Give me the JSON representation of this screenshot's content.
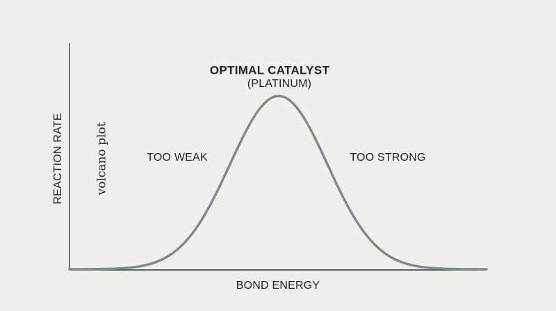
{
  "diagram": {
    "y_axis_label": "REACTION RATE",
    "x_axis_label": "BOND ENERGY",
    "peak_label": "OPTIMAL CATALYST",
    "peak_sublabel": "(PLATINUM)",
    "left_region_label": "TOO WEAK",
    "right_region_label": "TOO STRONG",
    "side_caption": "volcano plot"
  },
  "chart_data": {
    "type": "line",
    "curve_shape": "bell",
    "ticks_shown": false,
    "grid": false,
    "legend": "none",
    "colors": {
      "background": "#f1efeb",
      "axis": "#333333",
      "curve": "#7f8a8c",
      "text": "#222222"
    }
  }
}
